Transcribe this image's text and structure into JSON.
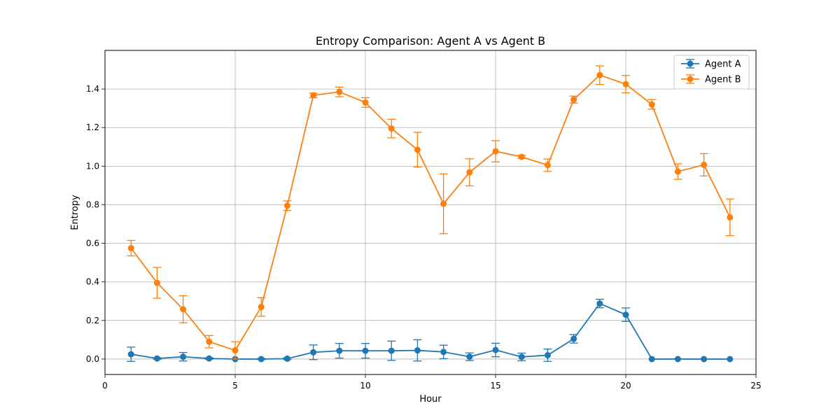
{
  "chart_data": {
    "type": "line",
    "title": "Entropy Comparison: Agent A vs Agent B",
    "xlabel": "Hour",
    "ylabel": "Entropy",
    "xlim": [
      0,
      25
    ],
    "ylim": [
      -0.08,
      1.6
    ],
    "xticks": [
      0,
      5,
      10,
      15,
      20,
      25
    ],
    "yticks": [
      0.0,
      0.2,
      0.4,
      0.6,
      0.8,
      1.0,
      1.2,
      1.4
    ],
    "grid": true,
    "legend_position": "top-right",
    "x": [
      1,
      2,
      3,
      4,
      5,
      6,
      7,
      8,
      9,
      10,
      11,
      12,
      13,
      14,
      15,
      16,
      17,
      18,
      19,
      20,
      21,
      22,
      23,
      24
    ],
    "series": [
      {
        "name": "Agent A",
        "color": "#1f77b4",
        "values": [
          0.025,
          0.003,
          0.012,
          0.003,
          0.0,
          0.0,
          0.002,
          0.035,
          0.043,
          0.043,
          0.043,
          0.045,
          0.037,
          0.012,
          0.047,
          0.011,
          0.02,
          0.105,
          0.288,
          0.23,
          0.0,
          0.0,
          0.0,
          0.0
        ],
        "errors": [
          0.037,
          0.004,
          0.022,
          0.004,
          0.002,
          0.003,
          0.005,
          0.038,
          0.038,
          0.038,
          0.05,
          0.055,
          0.035,
          0.02,
          0.035,
          0.02,
          0.032,
          0.022,
          0.022,
          0.035,
          0.0,
          0.0,
          0.0,
          0.0
        ]
      },
      {
        "name": "Agent B",
        "color": "#ff7f0e",
        "values": [
          0.575,
          0.395,
          0.258,
          0.09,
          0.045,
          0.27,
          0.795,
          1.367,
          1.385,
          1.33,
          1.195,
          1.085,
          0.805,
          0.968,
          1.077,
          1.048,
          1.005,
          1.345,
          1.472,
          1.425,
          1.32,
          0.972,
          1.007,
          0.735
        ],
        "errors": [
          0.04,
          0.08,
          0.07,
          0.032,
          0.045,
          0.048,
          0.025,
          0.012,
          0.025,
          0.025,
          0.048,
          0.09,
          0.155,
          0.07,
          0.055,
          0.008,
          0.032,
          0.018,
          0.048,
          0.045,
          0.025,
          0.04,
          0.058,
          0.095
        ]
      }
    ]
  }
}
